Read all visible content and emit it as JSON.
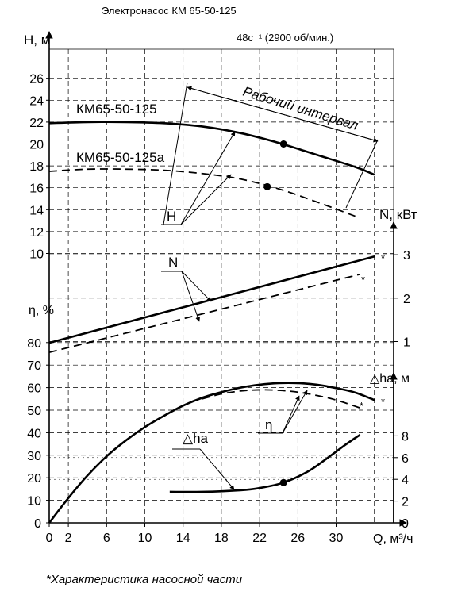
{
  "title": "Электронасос КМ 65-50-125",
  "speed_label": "48с⁻¹ (2900 об/мин.)",
  "footnote": "*Характеристика насосной части",
  "colors": {
    "line": "#000000",
    "grid": "#000000",
    "background": "#ffffff"
  },
  "chart_data": {
    "type": "line",
    "x": {
      "label": "Q, м³/ч",
      "ticks": [
        0,
        2,
        6,
        10,
        14,
        18,
        22,
        26,
        30
      ],
      "range": [
        0,
        36
      ]
    },
    "panels": [
      {
        "id": "head",
        "ylabel": "H, м",
        "ylim": [
          9,
          28
        ],
        "yticks": [
          10,
          12,
          14,
          16,
          18,
          20,
          22,
          24,
          26
        ],
        "series": [
          {
            "name": "КМ65-50-125",
            "style": "solid",
            "x": [
              0,
              4,
              8,
              12,
              16,
              20,
              24,
              28,
              32,
              34
            ],
            "y": [
              21.9,
              22.0,
              22.0,
              21.9,
              21.6,
              21.0,
              20.1,
              19.0,
              17.9,
              17.2
            ],
            "marker": {
              "x": 24.5,
              "y": 20.0
            }
          },
          {
            "name": "КМ65-50-125а",
            "style": "dashed",
            "x": [
              0,
              4,
              8,
              12,
              16,
              20,
              24,
              28,
              32
            ],
            "y": [
              17.5,
              17.7,
              17.7,
              17.6,
              17.3,
              16.8,
              15.9,
              14.7,
              13.4
            ],
            "marker": {
              "x": 22.8,
              "y": 16.1
            }
          }
        ],
        "annotations": [
          "Рабочий интервал",
          "H"
        ]
      },
      {
        "id": "power",
        "ylabel": "N, кВт",
        "ylim": [
          0.5,
          3.5
        ],
        "yticks": [
          1,
          2,
          3
        ],
        "series": [
          {
            "name": "N",
            "style": "solid",
            "x": [
              0,
              34
            ],
            "y": [
              0.97,
              2.96
            ]
          },
          {
            "name": "N",
            "style": "dashed",
            "x": [
              0,
              32.5
            ],
            "y": [
              0.75,
              2.55
            ]
          }
        ],
        "annotations": [
          "N",
          "*",
          "*"
        ]
      },
      {
        "id": "efficiency",
        "ylabel": "η, %",
        "ylim": [
          0,
          85
        ],
        "yticks": [
          0,
          10,
          20,
          30,
          40,
          50,
          60,
          70,
          80
        ],
        "series": [
          {
            "name": "η",
            "style": "solid",
            "x": [
              0,
              2,
              4,
              6,
              8,
              10,
              12,
              14,
              16,
              18,
              20,
              22,
              24,
              26,
              28,
              30,
              32,
              34
            ],
            "y": [
              0,
              11,
              21,
              29.5,
              36.5,
              42.5,
              47.5,
              52.0,
              55.5,
              58.0,
              60.0,
              61.3,
              62.0,
              62.0,
              61.3,
              59.8,
              57.8,
              54.5
            ]
          },
          {
            "name": "η",
            "style": "dashed",
            "x": [
              16,
              18,
              20,
              22,
              24,
              26,
              28,
              30,
              32.5
            ],
            "y": [
              55.0,
              57.2,
              58.5,
              59.0,
              58.8,
              58.0,
              56.5,
              54.5,
              51.0
            ]
          }
        ],
        "annotations": [
          "η",
          "*",
          "*"
        ]
      },
      {
        "id": "npsh",
        "ylabel": "△hа, м",
        "ylim": [
          0,
          10
        ],
        "yticks": [
          0,
          2,
          4,
          6,
          8
        ],
        "series": [
          {
            "name": "△hа",
            "style": "solid",
            "x": [
              12.6,
              16,
              20,
              22,
              24.5,
              27,
              29,
              31,
              32.5
            ],
            "y": [
              2.85,
              2.85,
              3.0,
              3.2,
              3.7,
              4.7,
              5.9,
              7.2,
              8.1
            ],
            "marker": {
              "x": 24.5,
              "y": 3.7
            }
          }
        ]
      }
    ]
  }
}
